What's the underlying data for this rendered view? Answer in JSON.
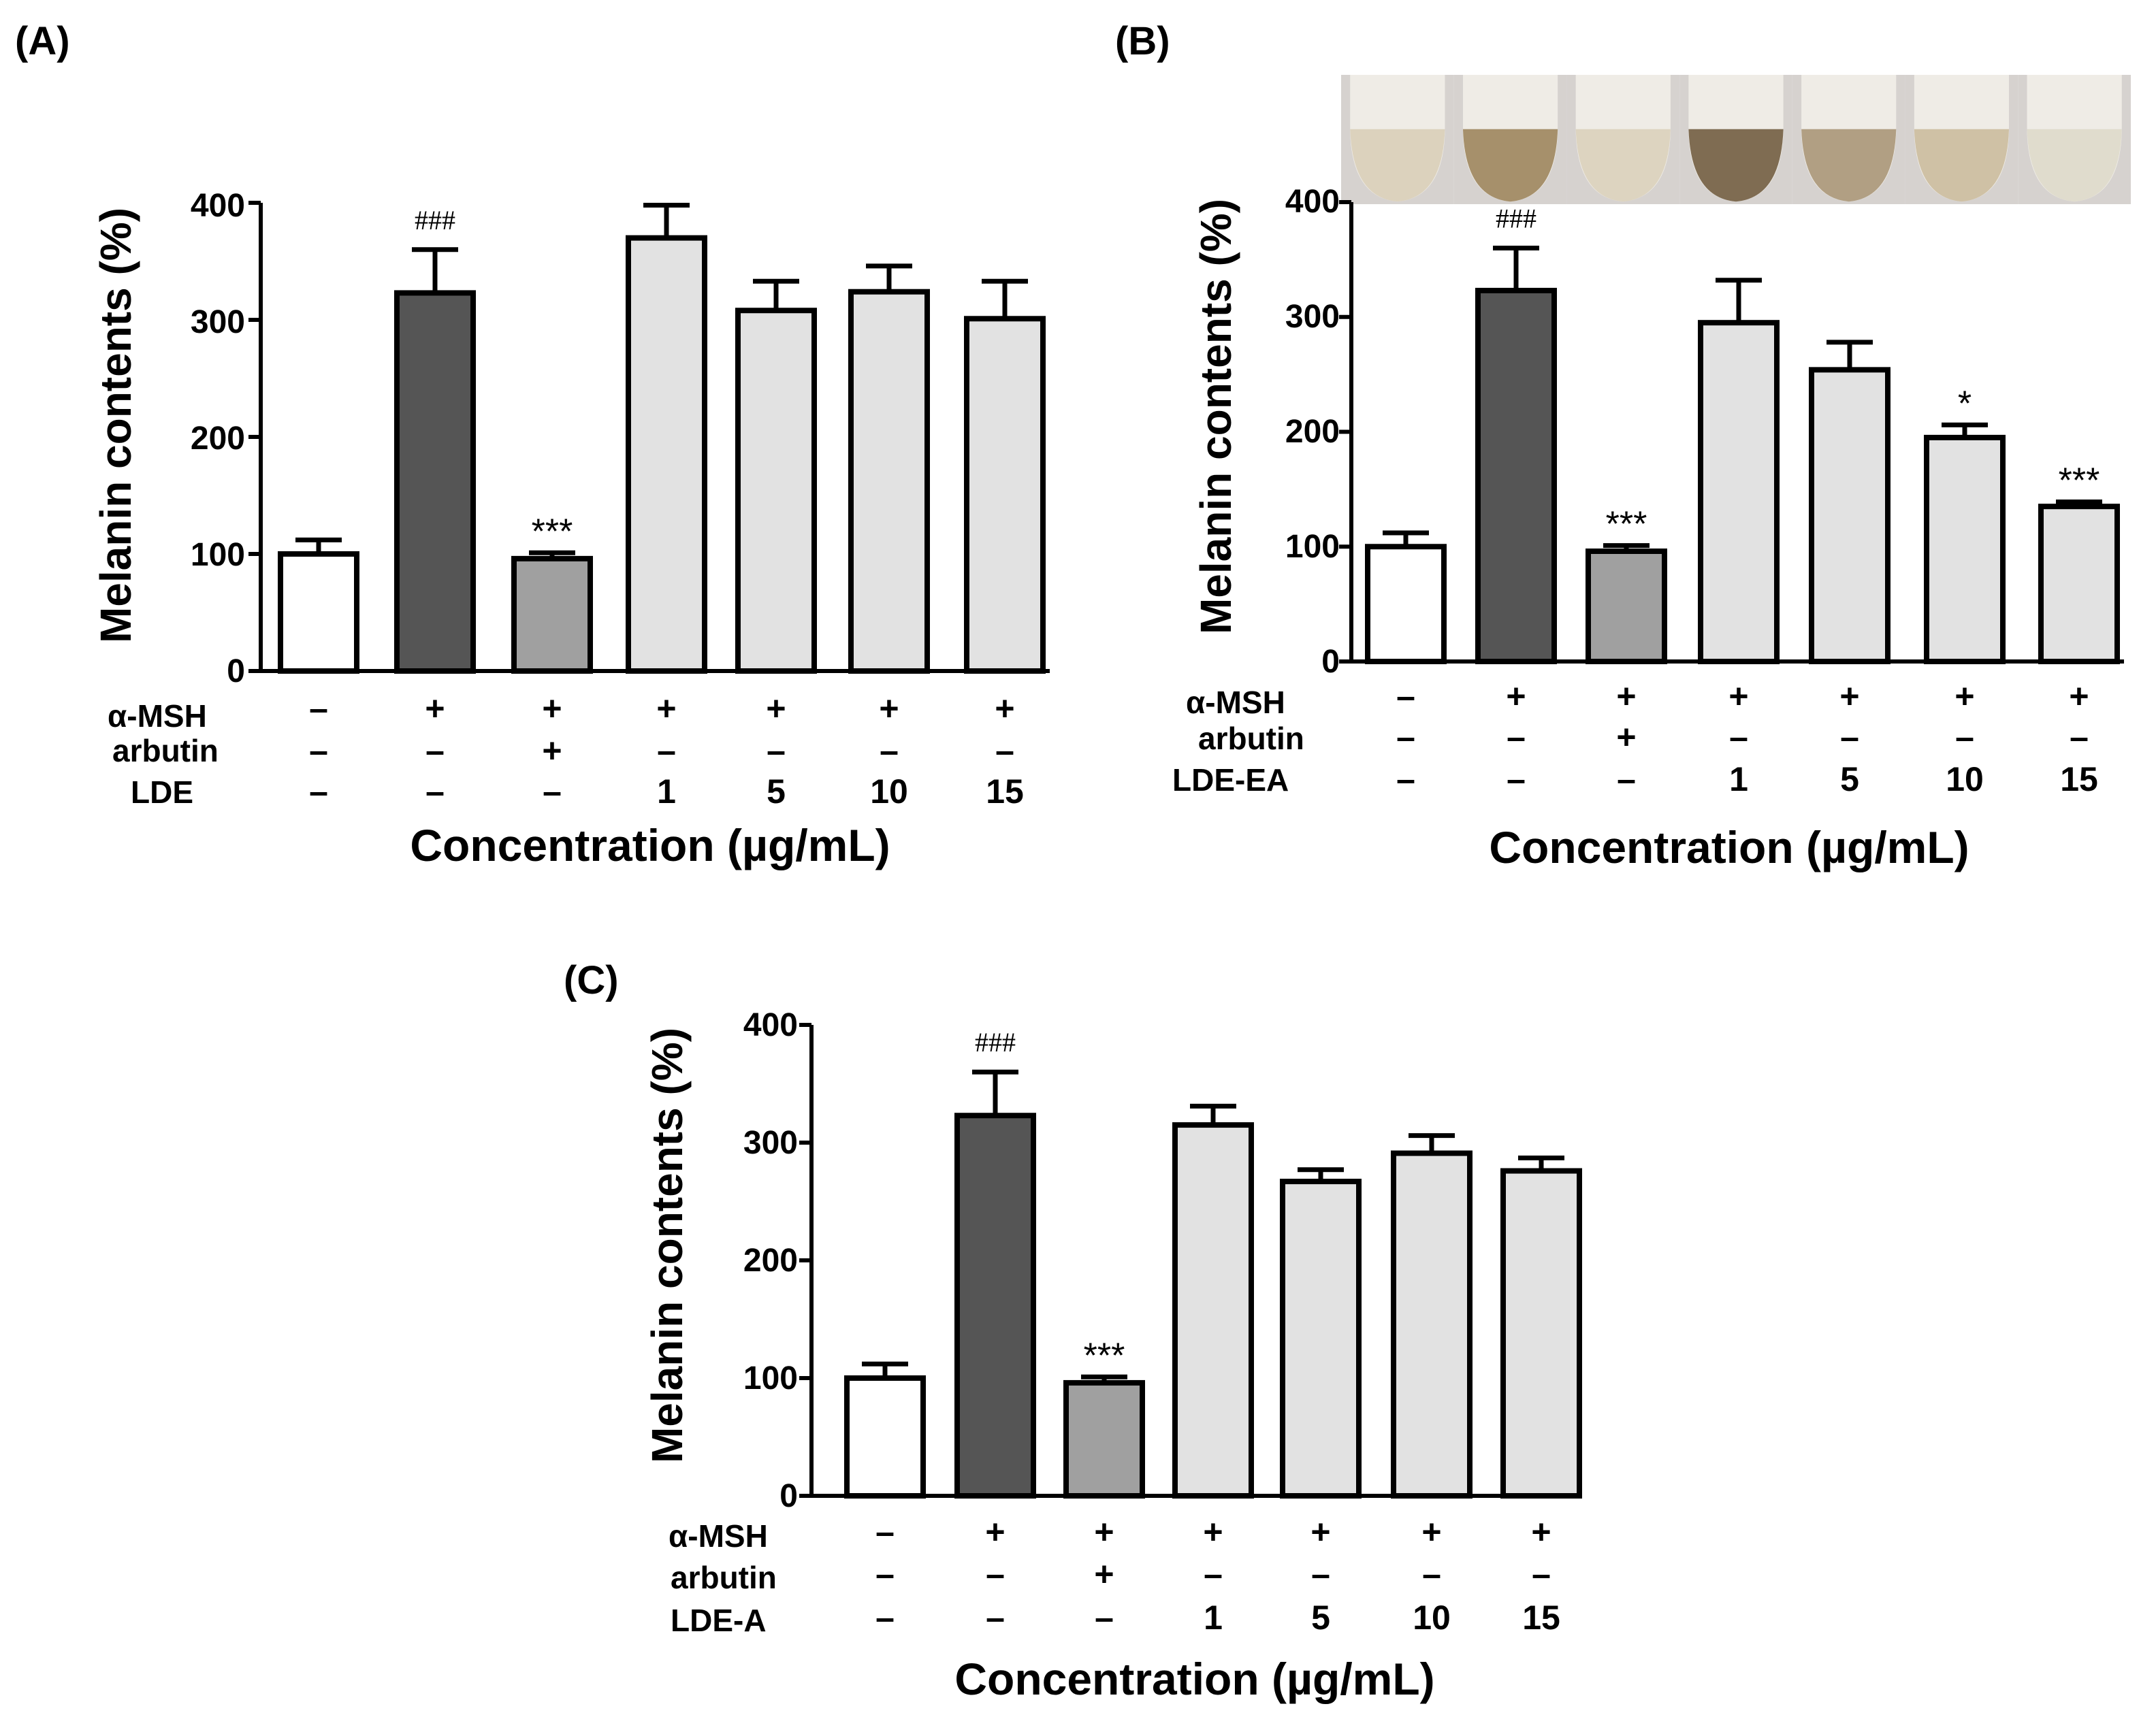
{
  "colors": {
    "control": "#ffffff",
    "msh": "#555555",
    "arbutin": "#a0a0a0",
    "extract": "#e2e2e2",
    "stroke": "#000000"
  },
  "tube_colors": [
    "#dcd2bd",
    "#a6906b",
    "#ddd4c0",
    "#7f6c52",
    "#b19f83",
    "#cfc1a5",
    "#e0dccd"
  ],
  "chart_data": [
    {
      "panel": "(A)",
      "type": "bar",
      "ylabel": "Melanin contents (%)",
      "xlabel": "Concentration (µg/mL)",
      "ylim": [
        0,
        400
      ],
      "yticks": [
        "0",
        "100",
        "200",
        "300",
        "400"
      ],
      "values": [
        100,
        323,
        96,
        370,
        308,
        324,
        301
      ],
      "errors": [
        12,
        37,
        5,
        28,
        25,
        22,
        32
      ],
      "bar_kinds": [
        "control",
        "msh",
        "arbutin",
        "extract",
        "extract",
        "extract",
        "extract"
      ],
      "annotations": [
        "",
        "###",
        "***",
        "",
        "",
        "",
        ""
      ],
      "rows": [
        {
          "label": "α-MSH",
          "values": [
            "–",
            "+",
            "+",
            "+",
            "+",
            "+",
            "+"
          ]
        },
        {
          "label": "arbutin",
          "values": [
            "–",
            "–",
            "+",
            "–",
            "–",
            "–",
            "–"
          ]
        },
        {
          "label": "LDE",
          "values": [
            "–",
            "–",
            "–",
            "1",
            "5",
            "10",
            "15"
          ]
        }
      ]
    },
    {
      "panel": "(B)",
      "type": "bar",
      "ylabel": "Melanin contents (%)",
      "xlabel": "Concentration (µg/mL)",
      "ylim": [
        0,
        400
      ],
      "yticks": [
        "0",
        "100",
        "200",
        "300",
        "400"
      ],
      "values": [
        100,
        323,
        96,
        295,
        254,
        195,
        135
      ],
      "errors": [
        12,
        37,
        5,
        37,
        24,
        11,
        4
      ],
      "bar_kinds": [
        "control",
        "msh",
        "arbutin",
        "extract",
        "extract",
        "extract",
        "extract"
      ],
      "annotations": [
        "",
        "###",
        "***",
        "",
        "",
        "*",
        "***"
      ],
      "rows": [
        {
          "label": "α-MSH",
          "values": [
            "–",
            "+",
            "+",
            "+",
            "+",
            "+",
            "+"
          ]
        },
        {
          "label": "arbutin",
          "values": [
            "–",
            "–",
            "+",
            "–",
            "–",
            "–",
            "–"
          ]
        },
        {
          "label": "LDE-EA",
          "values": [
            "–",
            "–",
            "–",
            "1",
            "5",
            "10",
            "15"
          ]
        }
      ]
    },
    {
      "panel": "(C)",
      "type": "bar",
      "ylabel": "Melanin contents (%)",
      "xlabel": "Concentration (µg/mL)",
      "ylim": [
        0,
        400
      ],
      "yticks": [
        "0",
        "100",
        "200",
        "300",
        "400"
      ],
      "values": [
        100,
        323,
        96,
        315,
        267,
        291,
        276
      ],
      "errors": [
        12,
        37,
        5,
        16,
        10,
        15,
        11
      ],
      "bar_kinds": [
        "control",
        "msh",
        "arbutin",
        "extract",
        "extract",
        "extract",
        "extract"
      ],
      "annotations": [
        "",
        "###",
        "***",
        "",
        "",
        "",
        ""
      ],
      "rows": [
        {
          "label": "α-MSH",
          "values": [
            "–",
            "+",
            "+",
            "+",
            "+",
            "+",
            "+"
          ]
        },
        {
          "label": "arbutin",
          "values": [
            "–",
            "–",
            "+",
            "–",
            "–",
            "–",
            "–"
          ]
        },
        {
          "label": "LDE-A",
          "values": [
            "–",
            "–",
            "–",
            "1",
            "5",
            "10",
            "15"
          ]
        }
      ]
    }
  ]
}
